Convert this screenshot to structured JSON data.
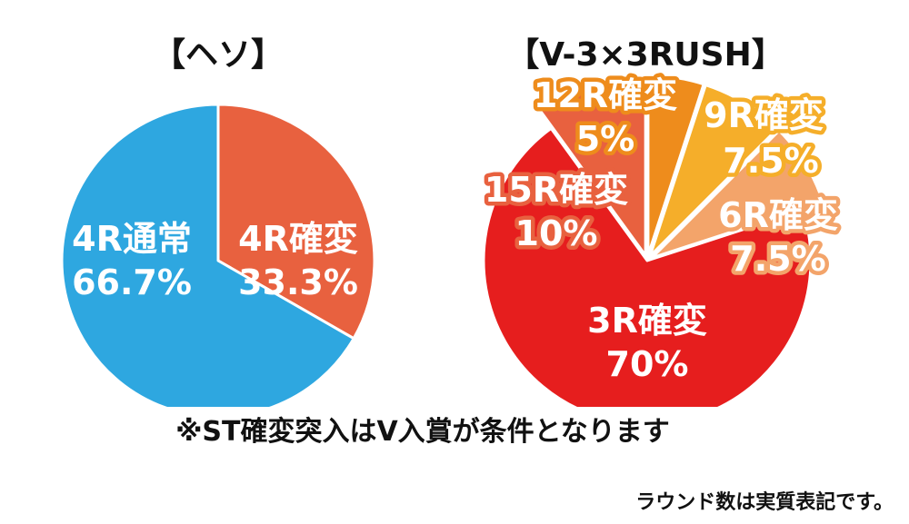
{
  "chart_data": [
    {
      "type": "pie",
      "title": "【ヘソ】",
      "slices": [
        {
          "label": "4R確変",
          "percent_label": "33.3%",
          "value": 33.3,
          "color": "#e8613f"
        },
        {
          "label": "4R通常",
          "percent_label": "66.7%",
          "value": 66.7,
          "color": "#2ea7e0"
        }
      ]
    },
    {
      "type": "pie",
      "title": "【V-3×3RUSH】",
      "slices": [
        {
          "label": "12R確変",
          "percent_label": "5%",
          "value": 5,
          "color": "#ee8c1c",
          "exploded": true
        },
        {
          "label": "9R確変",
          "percent_label": "7.5%",
          "value": 7.5,
          "color": "#f5ae2a",
          "exploded": true
        },
        {
          "label": "6R確変",
          "percent_label": "7.5%",
          "value": 7.5,
          "color": "#f3a46a",
          "exploded": true
        },
        {
          "label": "3R確変",
          "percent_label": "70%",
          "value": 70,
          "color": "#e61e1e"
        },
        {
          "label": "15R確変",
          "percent_label": "10%",
          "value": 10,
          "color": "#e8613f",
          "exploded": true
        }
      ]
    }
  ],
  "note": "※ST確変突入はV入賞が条件となります",
  "footer": "ラウンド数は実質表記です。"
}
